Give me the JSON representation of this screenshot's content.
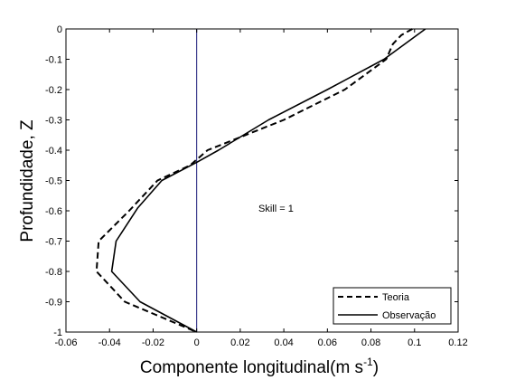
{
  "chart_data": {
    "type": "line",
    "title": "",
    "xlabel": "Componente longitudinal(m s",
    "xlabel_superscript": "-1",
    "xlabel_suffix": ")",
    "ylabel": "Profundidade, Z",
    "xlim": [
      -0.06,
      0.12
    ],
    "ylim": [
      -1,
      0
    ],
    "xticks": [
      -0.06,
      -0.04,
      -0.02,
      0,
      0.02,
      0.04,
      0.06,
      0.08,
      0.1,
      0.12
    ],
    "xtick_labels": [
      "-0.06",
      "-0.04",
      "-0.02",
      "0",
      "0.02",
      "0.04",
      "0.06",
      "0.08",
      "0.1",
      "0.12"
    ],
    "yticks": [
      -1,
      -0.9,
      -0.8,
      -0.7,
      -0.6,
      -0.5,
      -0.4,
      -0.3,
      -0.2,
      -0.1,
      0
    ],
    "ytick_labels": [
      "-1",
      "-0.9",
      "-0.8",
      "-0.7",
      "-0.6",
      "-0.5",
      "-0.4",
      "-0.3",
      "-0.2",
      "-0.1",
      "0"
    ],
    "grid": false,
    "legend": "bottom-right",
    "annotation": "Skill =  1",
    "reference_line_x": 0,
    "series": [
      {
        "name": "Teoria",
        "style": "dashed",
        "color": "#000000",
        "points": [
          {
            "x": 0.099,
            "y": 0
          },
          {
            "x": 0.094,
            "y": -0.02
          },
          {
            "x": 0.09,
            "y": -0.05
          },
          {
            "x": 0.087,
            "y": -0.1
          },
          {
            "x": 0.068,
            "y": -0.2
          },
          {
            "x": 0.04,
            "y": -0.3
          },
          {
            "x": 0.005,
            "y": -0.4
          },
          {
            "x": -0.003,
            "y": -0.45
          },
          {
            "x": -0.018,
            "y": -0.5
          },
          {
            "x": -0.031,
            "y": -0.6
          },
          {
            "x": -0.045,
            "y": -0.7
          },
          {
            "x": -0.046,
            "y": -0.8
          },
          {
            "x": -0.033,
            "y": -0.9
          },
          {
            "x": 0,
            "y": -1
          }
        ]
      },
      {
        "name": "Observação",
        "style": "solid",
        "color": "#000000",
        "points": [
          {
            "x": 0.105,
            "y": 0
          },
          {
            "x": 0.086,
            "y": -0.1
          },
          {
            "x": 0.06,
            "y": -0.2
          },
          {
            "x": 0.033,
            "y": -0.3
          },
          {
            "x": 0.01,
            "y": -0.4
          },
          {
            "x": 0,
            "y": -0.44
          },
          {
            "x": -0.016,
            "y": -0.5
          },
          {
            "x": -0.027,
            "y": -0.59
          },
          {
            "x": -0.037,
            "y": -0.7
          },
          {
            "x": -0.039,
            "y": -0.8
          },
          {
            "x": -0.026,
            "y": -0.9
          },
          {
            "x": 0,
            "y": -1
          }
        ]
      }
    ]
  },
  "colors": {
    "reference_line": "#1a1a7a",
    "axes": "#000000",
    "background": "#ffffff"
  }
}
